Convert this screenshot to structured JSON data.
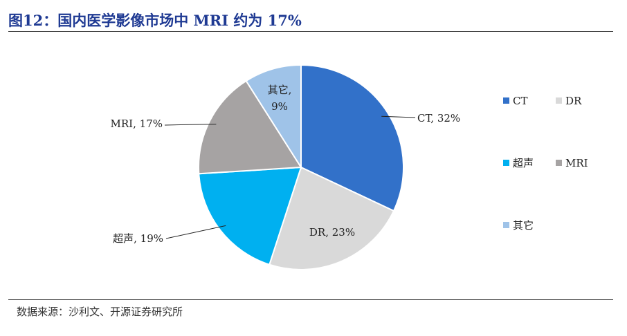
{
  "title": "图12：国内医学影像市场中 MRI 约为 17%",
  "source": "数据来源：沙利文、开源证券研究所",
  "colors": {
    "title": "#1f3a93",
    "CT": "#3271c9",
    "DR": "#d9d9d9",
    "超声": "#00b0f0",
    "MRI": "#a6a3a3",
    "其它": "#9fc3e8"
  },
  "chart_data": {
    "type": "pie",
    "title": "",
    "slices": [
      {
        "category": "CT",
        "value": 32,
        "label": "CT, 32%"
      },
      {
        "category": "DR",
        "value": 23,
        "label": "DR, 23%"
      },
      {
        "category": "超声",
        "value": 19,
        "label": "超声, 19%"
      },
      {
        "category": "MRI",
        "value": 17,
        "label": "MRI, 17%"
      },
      {
        "category": "其它",
        "value": 9,
        "label": "其它, 9%"
      }
    ],
    "legend": [
      "CT",
      "DR",
      "超声",
      "MRI",
      "其它"
    ],
    "legend_position": "right"
  }
}
